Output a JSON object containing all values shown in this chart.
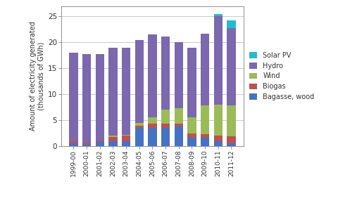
{
  "years": [
    "1999-00",
    "2000-01",
    "2001-02",
    "2002-03",
    "2003-04",
    "2004-05",
    "2005-06",
    "2006-07",
    "2007-08",
    "2008-09",
    "2009-10",
    "2010-11",
    "2011-12"
  ],
  "bagasse_wood": [
    0.5,
    0.3,
    0.8,
    1.0,
    1.0,
    3.5,
    3.5,
    3.5,
    3.8,
    1.7,
    1.6,
    1.0,
    0.6
  ],
  "biogas": [
    0.5,
    0.2,
    0.3,
    0.8,
    1.0,
    0.5,
    0.8,
    0.8,
    0.5,
    0.8,
    0.7,
    1.0,
    1.3
  ],
  "wind": [
    0.0,
    0.0,
    0.0,
    0.2,
    0.2,
    0.5,
    1.3,
    2.8,
    3.0,
    3.0,
    5.5,
    6.0,
    6.0
  ],
  "hydro": [
    17.0,
    17.3,
    16.6,
    17.0,
    16.8,
    16.0,
    15.9,
    14.0,
    12.7,
    13.5,
    13.9,
    17.0,
    14.8
  ],
  "solar_pv": [
    0.0,
    0.0,
    0.0,
    0.0,
    0.0,
    0.0,
    0.0,
    0.0,
    0.0,
    0.0,
    0.0,
    0.5,
    1.5
  ],
  "colors": {
    "bagasse_wood": "#4472C4",
    "biogas": "#C0504D",
    "wind": "#9BBB59",
    "hydro": "#7B68AE",
    "solar_pv": "#23BCCD"
  },
  "ylabel": "Amount of electricity generated\n(thousands of GWh)",
  "ylim": [
    0,
    27
  ],
  "yticks": [
    0,
    5,
    10,
    15,
    20,
    25
  ],
  "legend_labels": [
    "Solar PV",
    "Hydro",
    "Wind",
    "Biogas",
    "Bagasse, wood"
  ],
  "background_color": "#ffffff",
  "plot_bg_color": "#ffffff",
  "figsize": [
    4.81,
    2.89
  ],
  "dpi": 100
}
